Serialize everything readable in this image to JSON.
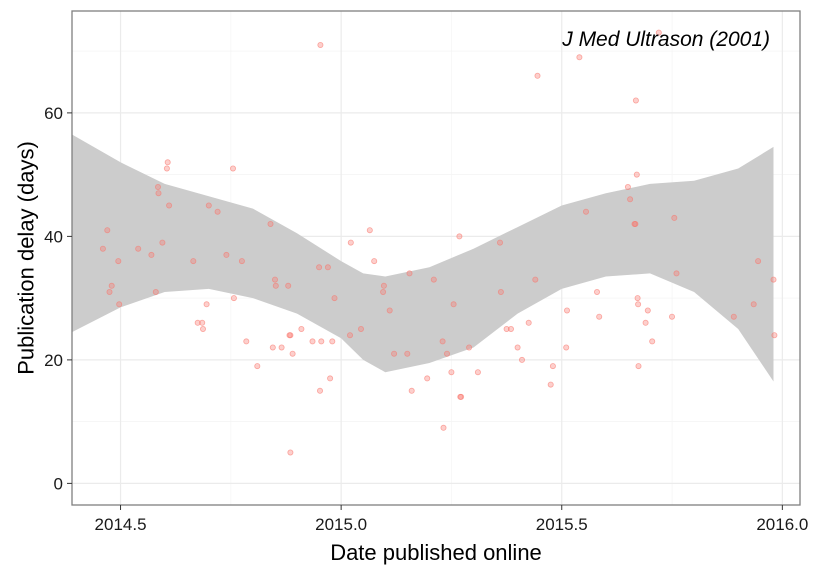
{
  "chart_data": {
    "type": "scatter",
    "title": "",
    "annotation": "J Med Ultrason (2001)",
    "xlabel": "Date published online",
    "ylabel": "Publication delay (days)",
    "xlim": [
      2014.39,
      2016.04
    ],
    "ylim": [
      -3.5,
      76.5
    ],
    "x_ticks": [
      2014.5,
      2015.0,
      2015.5,
      2016.0
    ],
    "x_tick_labels": [
      "2014.5",
      "2015.0",
      "2015.5",
      "2016.0"
    ],
    "y_ticks": [
      0,
      20,
      40,
      60
    ],
    "y_tick_labels": [
      "0",
      "20",
      "40",
      "60"
    ],
    "grid": true,
    "colors": {
      "points": "#f8766d",
      "band": "#cccccc",
      "grid_major": "#ebebeb",
      "grid_minor": "#f4f4f4",
      "panel_border": "#7f7f7f"
    },
    "points": [
      {
        "x": 2014.46,
        "y": 38
      },
      {
        "x": 2014.47,
        "y": 41
      },
      {
        "x": 2014.475,
        "y": 31
      },
      {
        "x": 2014.48,
        "y": 32
      },
      {
        "x": 2014.495,
        "y": 36
      },
      {
        "x": 2014.497,
        "y": 29
      },
      {
        "x": 2014.54,
        "y": 38
      },
      {
        "x": 2014.57,
        "y": 37
      },
      {
        "x": 2014.58,
        "y": 31
      },
      {
        "x": 2014.585,
        "y": 48
      },
      {
        "x": 2014.586,
        "y": 47
      },
      {
        "x": 2014.595,
        "y": 39
      },
      {
        "x": 2014.605,
        "y": 51
      },
      {
        "x": 2014.607,
        "y": 52
      },
      {
        "x": 2014.61,
        "y": 45
      },
      {
        "x": 2014.665,
        "y": 36
      },
      {
        "x": 2014.675,
        "y": 26
      },
      {
        "x": 2014.685,
        "y": 26
      },
      {
        "x": 2014.687,
        "y": 25
      },
      {
        "x": 2014.695,
        "y": 29
      },
      {
        "x": 2014.7,
        "y": 45
      },
      {
        "x": 2014.72,
        "y": 44
      },
      {
        "x": 2014.74,
        "y": 37
      },
      {
        "x": 2014.755,
        "y": 51
      },
      {
        "x": 2014.757,
        "y": 30
      },
      {
        "x": 2014.775,
        "y": 36
      },
      {
        "x": 2014.785,
        "y": 23
      },
      {
        "x": 2014.81,
        "y": 19
      },
      {
        "x": 2014.84,
        "y": 42
      },
      {
        "x": 2014.845,
        "y": 22
      },
      {
        "x": 2014.85,
        "y": 33
      },
      {
        "x": 2014.852,
        "y": 32
      },
      {
        "x": 2014.865,
        "y": 22
      },
      {
        "x": 2014.88,
        "y": 32
      },
      {
        "x": 2014.883,
        "y": 24
      },
      {
        "x": 2014.885,
        "y": 24
      },
      {
        "x": 2014.885,
        "y": 5
      },
      {
        "x": 2014.89,
        "y": 21
      },
      {
        "x": 2014.91,
        "y": 25
      },
      {
        "x": 2014.935,
        "y": 23
      },
      {
        "x": 2014.95,
        "y": 35
      },
      {
        "x": 2014.952,
        "y": 15
      },
      {
        "x": 2014.953,
        "y": 71
      },
      {
        "x": 2014.955,
        "y": 23
      },
      {
        "x": 2014.97,
        "y": 35
      },
      {
        "x": 2014.975,
        "y": 17
      },
      {
        "x": 2014.98,
        "y": 23
      },
      {
        "x": 2014.985,
        "y": 30
      },
      {
        "x": 2015.02,
        "y": 24
      },
      {
        "x": 2015.022,
        "y": 39
      },
      {
        "x": 2015.045,
        "y": 25
      },
      {
        "x": 2015.065,
        "y": 41
      },
      {
        "x": 2015.075,
        "y": 36
      },
      {
        "x": 2015.095,
        "y": 31
      },
      {
        "x": 2015.097,
        "y": 32
      },
      {
        "x": 2015.11,
        "y": 28
      },
      {
        "x": 2015.12,
        "y": 21
      },
      {
        "x": 2015.15,
        "y": 21
      },
      {
        "x": 2015.155,
        "y": 34
      },
      {
        "x": 2015.16,
        "y": 15
      },
      {
        "x": 2015.195,
        "y": 17
      },
      {
        "x": 2015.21,
        "y": 33
      },
      {
        "x": 2015.23,
        "y": 23
      },
      {
        "x": 2015.232,
        "y": 9
      },
      {
        "x": 2015.24,
        "y": 21
      },
      {
        "x": 2015.25,
        "y": 18
      },
      {
        "x": 2015.255,
        "y": 29
      },
      {
        "x": 2015.268,
        "y": 40
      },
      {
        "x": 2015.27,
        "y": 14
      },
      {
        "x": 2015.272,
        "y": 14
      },
      {
        "x": 2015.29,
        "y": 22
      },
      {
        "x": 2015.31,
        "y": 18
      },
      {
        "x": 2015.36,
        "y": 39
      },
      {
        "x": 2015.362,
        "y": 31
      },
      {
        "x": 2015.375,
        "y": 25
      },
      {
        "x": 2015.385,
        "y": 25
      },
      {
        "x": 2015.4,
        "y": 22
      },
      {
        "x": 2015.41,
        "y": 20
      },
      {
        "x": 2015.425,
        "y": 26
      },
      {
        "x": 2015.44,
        "y": 33
      },
      {
        "x": 2015.445,
        "y": 66
      },
      {
        "x": 2015.475,
        "y": 16
      },
      {
        "x": 2015.48,
        "y": 19
      },
      {
        "x": 2015.51,
        "y": 22
      },
      {
        "x": 2015.512,
        "y": 28
      },
      {
        "x": 2015.54,
        "y": 69
      },
      {
        "x": 2015.555,
        "y": 44
      },
      {
        "x": 2015.58,
        "y": 31
      },
      {
        "x": 2015.585,
        "y": 27
      },
      {
        "x": 2015.65,
        "y": 48
      },
      {
        "x": 2015.655,
        "y": 46
      },
      {
        "x": 2015.665,
        "y": 42
      },
      {
        "x": 2015.667,
        "y": 42
      },
      {
        "x": 2015.668,
        "y": 62
      },
      {
        "x": 2015.67,
        "y": 50
      },
      {
        "x": 2015.672,
        "y": 30
      },
      {
        "x": 2015.673,
        "y": 29
      },
      {
        "x": 2015.674,
        "y": 19
      },
      {
        "x": 2015.69,
        "y": 26
      },
      {
        "x": 2015.695,
        "y": 28
      },
      {
        "x": 2015.705,
        "y": 23
      },
      {
        "x": 2015.72,
        "y": 73
      },
      {
        "x": 2015.755,
        "y": 43
      },
      {
        "x": 2015.76,
        "y": 34
      },
      {
        "x": 2015.75,
        "y": 27
      },
      {
        "x": 2015.89,
        "y": 27
      },
      {
        "x": 2015.935,
        "y": 29
      },
      {
        "x": 2015.945,
        "y": 36
      },
      {
        "x": 2015.98,
        "y": 33
      },
      {
        "x": 2015.982,
        "y": 24
      }
    ],
    "band": {
      "x": [
        2014.39,
        2014.5,
        2014.6,
        2014.7,
        2014.8,
        2014.9,
        2015.0,
        2015.05,
        2015.1,
        2015.2,
        2015.3,
        2015.4,
        2015.5,
        2015.6,
        2015.7,
        2015.8,
        2015.9,
        2015.98
      ],
      "upper": [
        56.5,
        52,
        48.5,
        46.5,
        44.5,
        40.5,
        36,
        34,
        33.5,
        35,
        38,
        41.5,
        45,
        47,
        48.5,
        49,
        51,
        54.5
      ],
      "lower": [
        24.5,
        28.5,
        31,
        31.5,
        30,
        27.5,
        23.5,
        20,
        18,
        19.5,
        22,
        27.5,
        31.5,
        33.5,
        34,
        31,
        25,
        16.5
      ]
    }
  }
}
